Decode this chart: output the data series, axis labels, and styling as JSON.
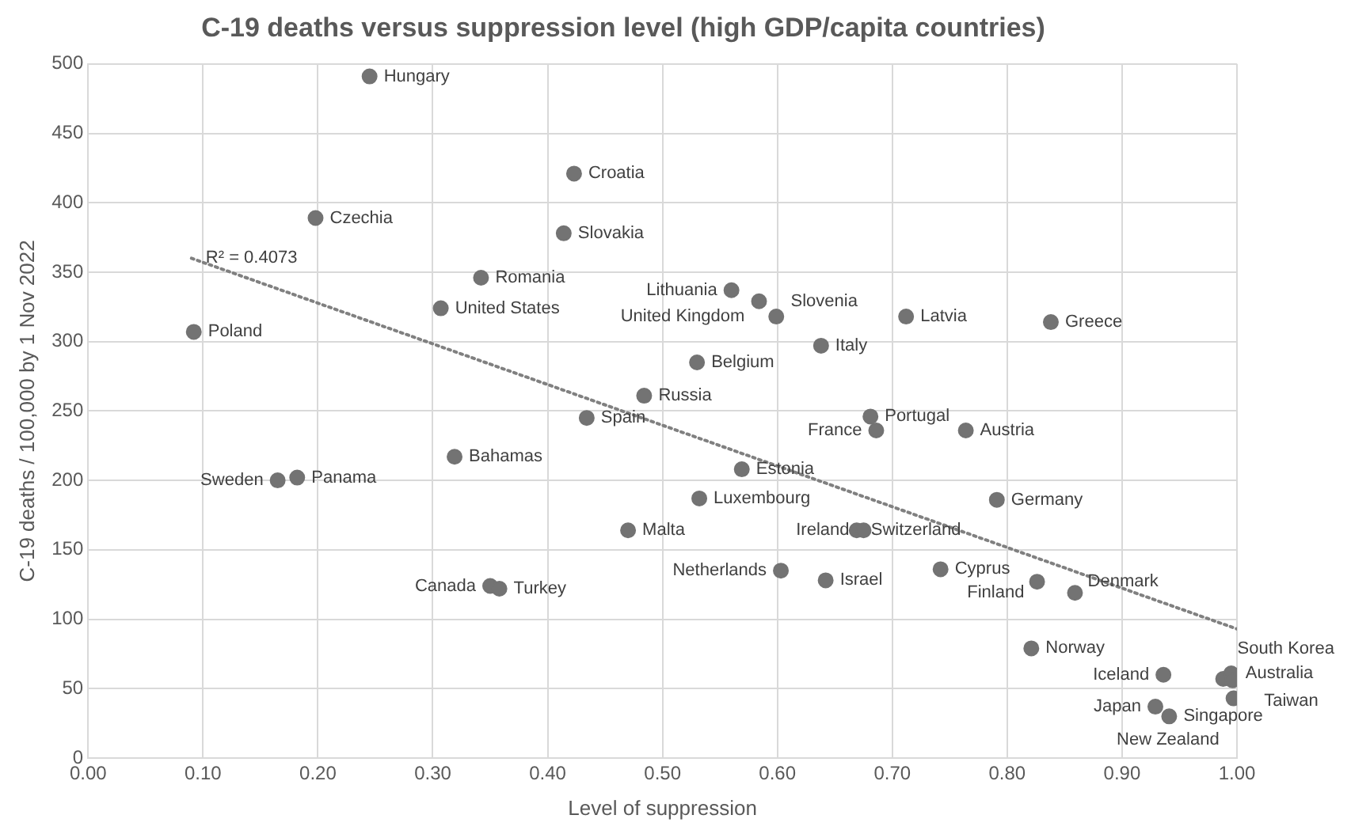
{
  "chart_data": {
    "type": "scatter",
    "title": "C-19 deaths versus suppression level (high GDP/capita countries)",
    "xlabel": "Level of suppression",
    "ylabel": "C-19 deaths / 100,000 by 1 Nov 2022",
    "xlim": [
      0,
      1
    ],
    "xticks": [
      {
        "value": 0,
        "label": "0.00"
      },
      {
        "value": 0.1,
        "label": "0.10"
      },
      {
        "value": 0.2,
        "label": "0.20"
      },
      {
        "value": 0.3,
        "label": "0.30"
      },
      {
        "value": 0.4,
        "label": "0.40"
      },
      {
        "value": 0.5,
        "label": "0.50"
      },
      {
        "value": 0.6,
        "label": "0.60"
      },
      {
        "value": 0.7,
        "label": "0.70"
      },
      {
        "value": 0.8,
        "label": "0.80"
      },
      {
        "value": 0.9,
        "label": "0.90"
      },
      {
        "value": 1,
        "label": "1.00"
      }
    ],
    "ylim": [
      0,
      500
    ],
    "yticks": [
      0,
      50,
      100,
      150,
      200,
      250,
      300,
      350,
      400,
      450,
      500
    ],
    "grid": true,
    "legend": false,
    "series": [
      {
        "type": "scatter",
        "color": "#737373",
        "marker": "circle",
        "x": [
          0.245,
          0.423,
          0.198,
          0.414,
          0.342,
          0.307,
          0.092,
          0.56,
          0.584,
          0.599,
          0.712,
          0.838,
          0.638,
          0.53,
          0.484,
          0.434,
          0.681,
          0.686,
          0.764,
          0.319,
          0.569,
          0.182,
          0.165,
          0.532,
          0.791,
          0.47,
          0.669,
          0.675,
          0.603,
          0.642,
          0.742,
          0.826,
          0.859,
          0.35,
          0.358,
          0.821,
          0.936,
          0.929,
          0.941,
          0.988,
          0.995,
          0.996,
          0.997
        ],
        "values": [
          491,
          421,
          389,
          378,
          346,
          324,
          307,
          337,
          329,
          318,
          318,
          314,
          297,
          285,
          261,
          245,
          246,
          236,
          236,
          217,
          208,
          202,
          200,
          187,
          186,
          164,
          164,
          164,
          135,
          128,
          136,
          127,
          119,
          124,
          122,
          79,
          60,
          37,
          30,
          57,
          61,
          56,
          43
        ]
      },
      {
        "type": "line",
        "color": "#808080",
        "marker": "none",
        "line_style": "dotted",
        "x": [
          0.09,
          1.0
        ],
        "values": [
          360,
          93
        ]
      }
    ],
    "annotations": [
      {
        "text": "Hungary",
        "x": 0.245,
        "y": 491
      },
      {
        "text": "Croatia",
        "x": 0.423,
        "y": 421
      },
      {
        "text": "Czechia",
        "x": 0.198,
        "y": 389
      },
      {
        "text": "Slovakia",
        "x": 0.414,
        "y": 378
      },
      {
        "text": "Romania",
        "x": 0.342,
        "y": 346
      },
      {
        "text": "United States",
        "x": 0.307,
        "y": 324
      },
      {
        "text": "Poland",
        "x": 0.092,
        "y": 307
      },
      {
        "text": "Lithuania",
        "x": 0.56,
        "y": 337
      },
      {
        "text": "Slovenia",
        "x": 0.584,
        "y": 329
      },
      {
        "text": "United Kingdom",
        "x": 0.599,
        "y": 318
      },
      {
        "text": "Latvia",
        "x": 0.712,
        "y": 318
      },
      {
        "text": "Greece",
        "x": 0.838,
        "y": 314
      },
      {
        "text": "Italy",
        "x": 0.638,
        "y": 297
      },
      {
        "text": "Belgium",
        "x": 0.53,
        "y": 285
      },
      {
        "text": "Russia",
        "x": 0.484,
        "y": 261
      },
      {
        "text": "Spain",
        "x": 0.434,
        "y": 245
      },
      {
        "text": "Portugal",
        "x": 0.681,
        "y": 246
      },
      {
        "text": "France",
        "x": 0.686,
        "y": 236
      },
      {
        "text": "Austria",
        "x": 0.764,
        "y": 236
      },
      {
        "text": "Bahamas",
        "x": 0.319,
        "y": 217
      },
      {
        "text": "Estonia",
        "x": 0.569,
        "y": 208
      },
      {
        "text": "Panama",
        "x": 0.182,
        "y": 202
      },
      {
        "text": "Sweden",
        "x": 0.165,
        "y": 200
      },
      {
        "text": "Luxembourg",
        "x": 0.532,
        "y": 187
      },
      {
        "text": "Germany",
        "x": 0.791,
        "y": 186
      },
      {
        "text": "Malta",
        "x": 0.47,
        "y": 164
      },
      {
        "text": "Switzerland",
        "x": 0.669,
        "y": 164
      },
      {
        "text": "Ireland",
        "x": 0.675,
        "y": 164
      },
      {
        "text": "Netherlands",
        "x": 0.603,
        "y": 135
      },
      {
        "text": "Israel",
        "x": 0.642,
        "y": 128
      },
      {
        "text": "Cyprus",
        "x": 0.742,
        "y": 136
      },
      {
        "text": "Denmark",
        "x": 0.826,
        "y": 127
      },
      {
        "text": "Finland",
        "x": 0.859,
        "y": 119
      },
      {
        "text": "Canada",
        "x": 0.35,
        "y": 124
      },
      {
        "text": "Turkey",
        "x": 0.358,
        "y": 122
      },
      {
        "text": "Norway",
        "x": 0.821,
        "y": 79
      },
      {
        "text": "Iceland",
        "x": 0.936,
        "y": 60
      },
      {
        "text": "Japan",
        "x": 0.929,
        "y": 37
      },
      {
        "text": "Singapore",
        "x": 0.941,
        "y": 30
      },
      {
        "text": "South Korea",
        "x": 0.988,
        "y": 57
      },
      {
        "text": "Australia",
        "x": 0.995,
        "y": 61
      },
      {
        "text": "Taiwan",
        "x": 0.996,
        "y": 56
      },
      {
        "text": "New Zealand",
        "x": 0.997,
        "y": 43
      },
      {
        "text": "R² = 0.4073",
        "x": 0.09,
        "y": 360
      }
    ]
  }
}
